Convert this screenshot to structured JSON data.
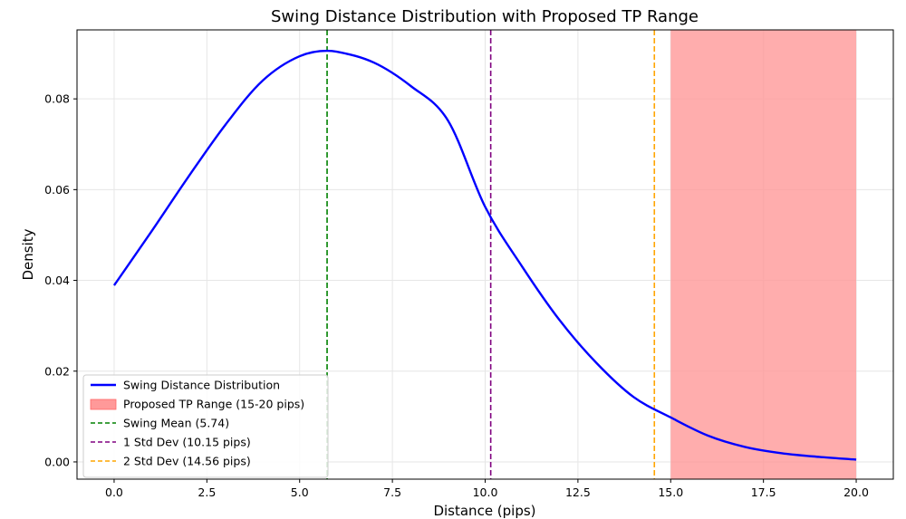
{
  "chart_data": {
    "type": "line",
    "title": "Swing Distance Distribution with Proposed TP Range",
    "xlabel": "Distance (pips)",
    "ylabel": "Density",
    "xlim": [
      -1.0,
      21.0
    ],
    "ylim": [
      -0.0038,
      0.0952
    ],
    "xticks": [
      0.0,
      2.5,
      5.0,
      7.5,
      10.0,
      12.5,
      15.0,
      17.5,
      20.0
    ],
    "xtick_labels": [
      "0.0",
      "2.5",
      "5.0",
      "7.5",
      "10.0",
      "12.5",
      "15.0",
      "17.5",
      "20.0"
    ],
    "yticks": [
      0.0,
      0.02,
      0.04,
      0.06,
      0.08
    ],
    "ytick_labels": [
      "0.00",
      "0.02",
      "0.04",
      "0.06",
      "0.08"
    ],
    "grid": true,
    "legend_position": "lower-left",
    "series": [
      {
        "name": "Swing Distance Distribution",
        "kind": "line",
        "color": "#0000ff",
        "x": [
          0.0,
          1.0,
          2.0,
          3.0,
          4.0,
          5.0,
          5.74,
          6.0,
          7.0,
          8.0,
          9.0,
          10.0,
          11.0,
          12.0,
          13.0,
          14.0,
          15.0,
          16.0,
          17.0,
          18.0,
          19.0,
          20.0
        ],
        "y": [
          0.0389,
          0.0507,
          0.0628,
          0.0743,
          0.084,
          0.0894,
          0.0906,
          0.0904,
          0.088,
          0.0828,
          0.0752,
          0.0562,
          0.043,
          0.0313,
          0.0218,
          0.0143,
          0.0098,
          0.0058,
          0.0033,
          0.0019,
          0.0011,
          0.0005
        ]
      }
    ],
    "shaded_range": {
      "name": "Proposed TP Range (15-20 pips)",
      "x_start": 15.0,
      "x_end": 20.0,
      "color": "#ff9999"
    },
    "vertical_lines": [
      {
        "name": "Swing Mean (5.74)",
        "x": 5.74,
        "color": "#008000"
      },
      {
        "name": "1 Std Dev (10.15 pips)",
        "x": 10.15,
        "color": "#800080"
      },
      {
        "name": "2 Std Dev (14.56 pips)",
        "x": 14.56,
        "color": "#ffa500"
      }
    ]
  }
}
